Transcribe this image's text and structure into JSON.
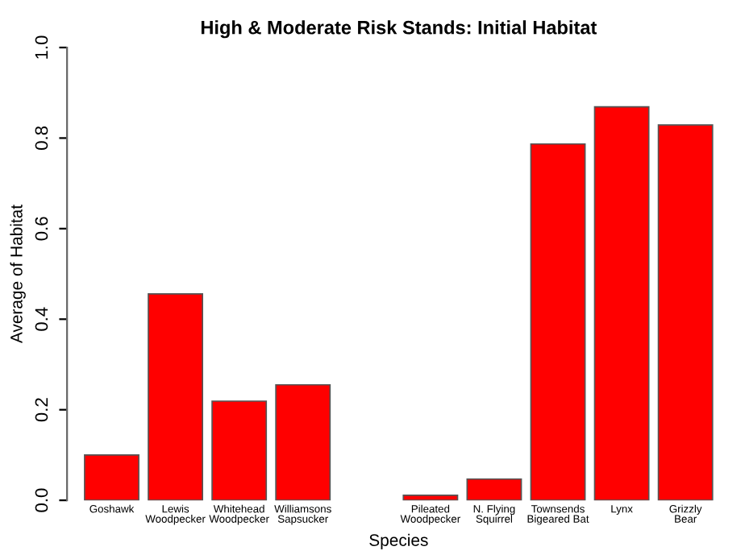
{
  "chart_data": {
    "type": "bar",
    "title": "High & Moderate Risk Stands: Initial Habitat",
    "xlabel": "Species",
    "ylabel": "Average of Habitat",
    "categories": [
      "Goshawk",
      "Lewis\nWoodpecker",
      "Whitehead\nWoodpecker",
      "Williamsons\nSapsucker",
      null,
      "Pileated\nWoodpecker",
      "N. Flying\nSquirrel",
      "Townsends\nBigeared Bat",
      "Lynx",
      "Grizzly\nBear"
    ],
    "values": [
      0.1,
      0.456,
      0.219,
      0.255,
      null,
      0.011,
      0.047,
      0.787,
      0.869,
      0.829
    ],
    "color": "#ff0000",
    "ylim": [
      0,
      1
    ],
    "yticks": [
      {
        "value": 0,
        "label": "0.0"
      },
      0.2,
      0.4,
      0.6,
      0.8,
      {
        "value": 1,
        "label": "1.0"
      }
    ],
    "grid": false
  }
}
